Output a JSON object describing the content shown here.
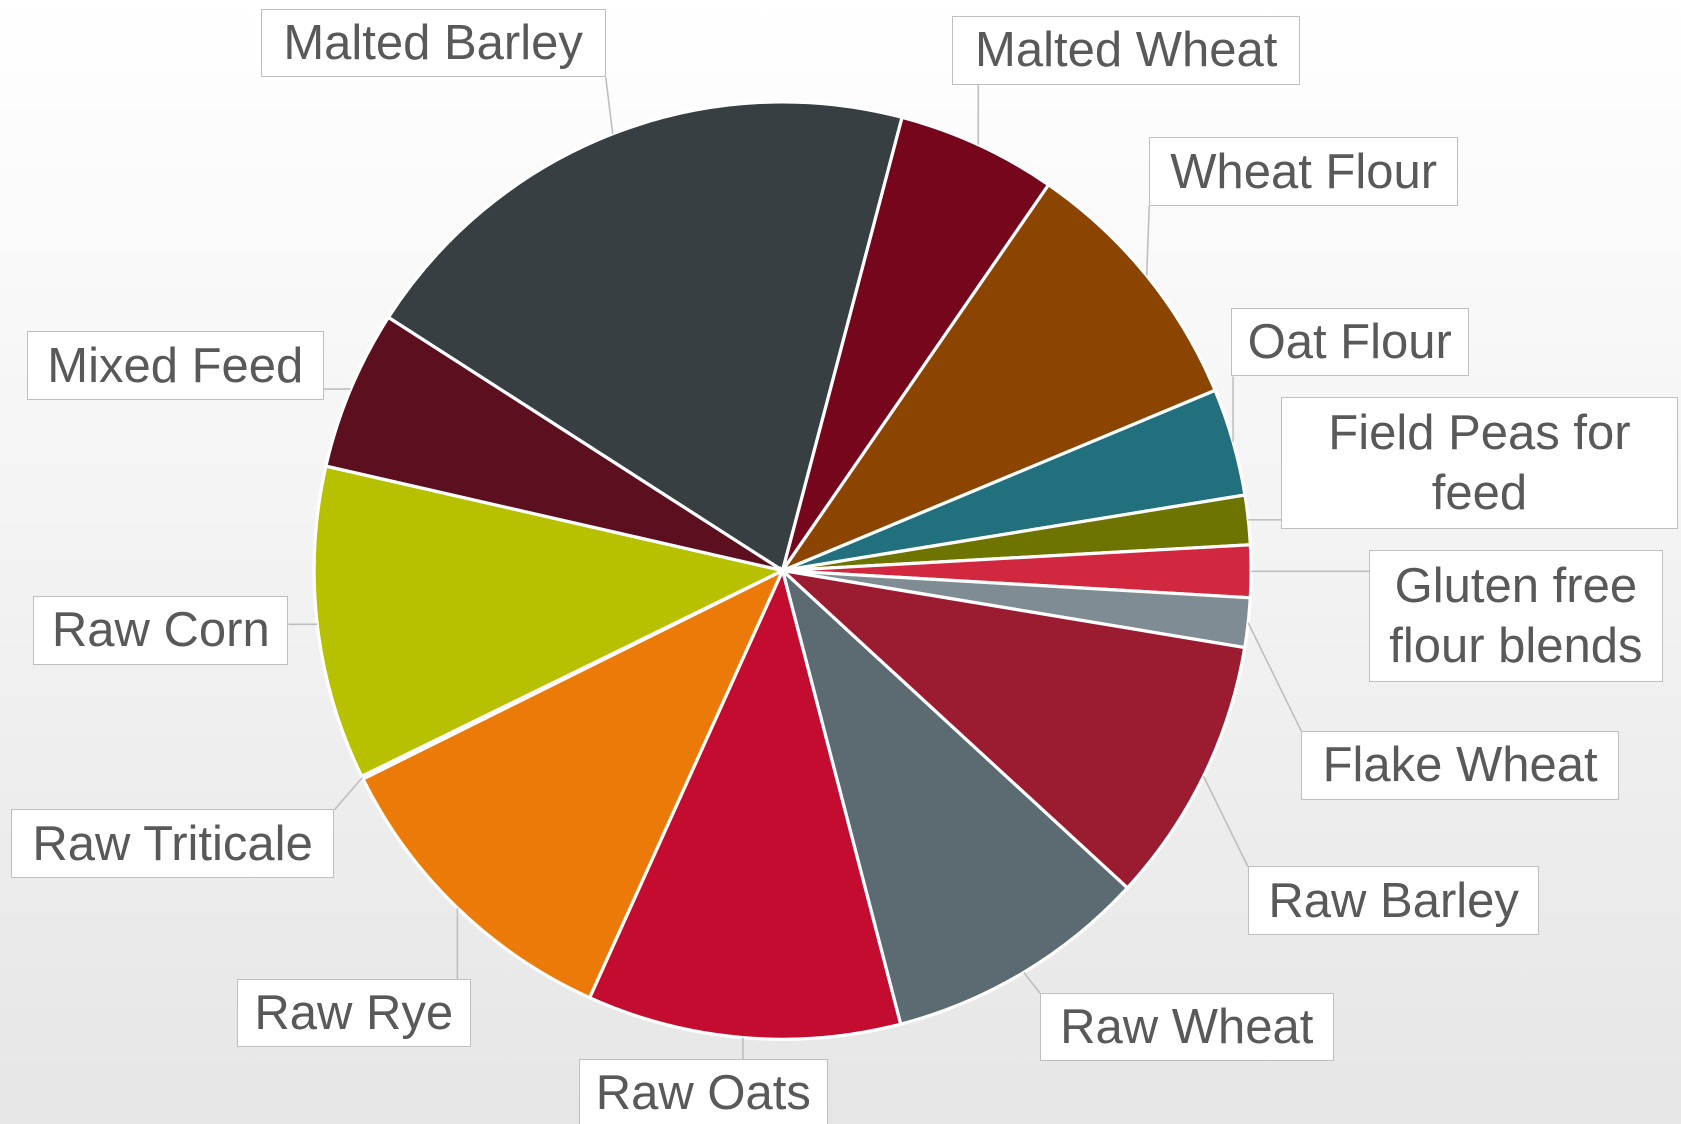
{
  "chart_data": {
    "type": "pie",
    "categories": [
      "Malted Barley",
      "Malted Wheat",
      "Wheat Flour",
      "Oat Flour",
      "Field Peas for feed",
      "Gluten free flour blends",
      "Flake Wheat",
      "Raw Barley",
      "Raw Wheat",
      "Raw Oats",
      "Raw Rye",
      "Raw Triticale",
      "Raw Corn",
      "Mixed Feed"
    ],
    "values": [
      20,
      5.5,
      9.1,
      3.7,
      1.7,
      1.8,
      1.7,
      9.2,
      9.1,
      10.8,
      10.9,
      0.1,
      10.8,
      5.5
    ],
    "colors": [
      "#373f43",
      "#75061c",
      "#8b4500",
      "#226f7e",
      "#6e7400",
      "#d2283f",
      "#7f8c94",
      "#9b1c31",
      "#5c6a72",
      "#c40c30",
      "#eb7a09",
      "#9a9a9a",
      "#b7c100",
      "#5c0f1e"
    ]
  }
}
